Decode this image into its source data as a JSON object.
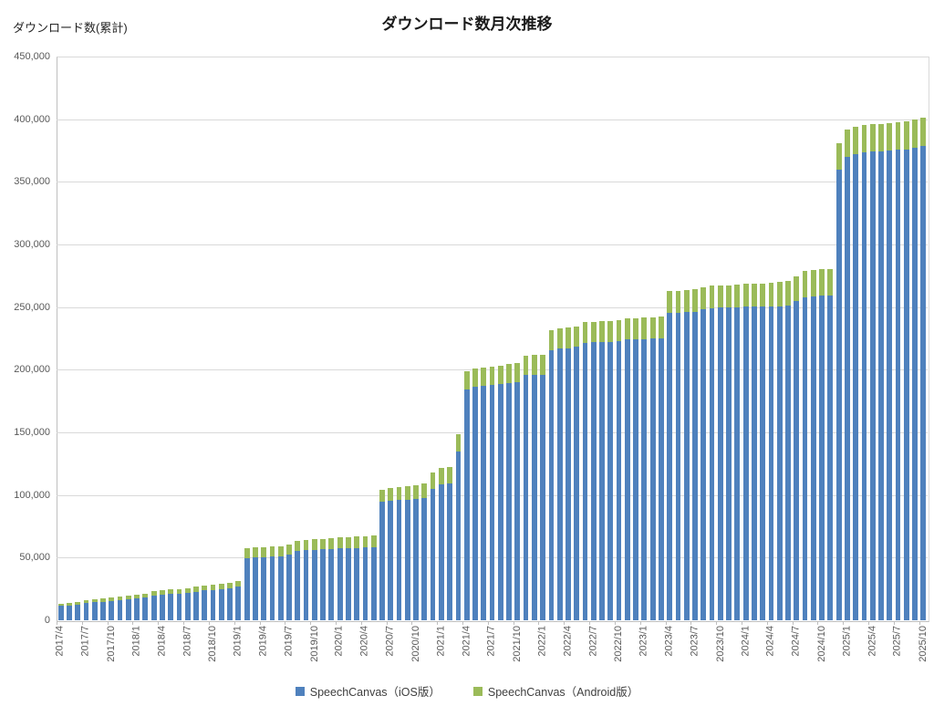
{
  "chart_data": {
    "type": "bar",
    "stacked": true,
    "title": "ダウンロード数月次推移",
    "ylabel": "ダウンロード数(累計)",
    "xlabel": "",
    "ylim": [
      0,
      450000
    ],
    "yticks": [
      0,
      50000,
      100000,
      150000,
      200000,
      250000,
      300000,
      350000,
      400000,
      450000
    ],
    "grid": true,
    "legend_position": "bottom",
    "x_label_every": 3,
    "categories": [
      "2017/4",
      "2017/5",
      "2017/6",
      "2017/7",
      "2017/8",
      "2017/9",
      "2017/10",
      "2017/11",
      "2017/12",
      "2018/1",
      "2018/2",
      "2018/3",
      "2018/4",
      "2018/5",
      "2018/6",
      "2018/7",
      "2018/8",
      "2018/9",
      "2018/10",
      "2018/11",
      "2018/12",
      "2019/1",
      "2019/2",
      "2019/3",
      "2019/4",
      "2019/5",
      "2019/6",
      "2019/7",
      "2019/8",
      "2019/9",
      "2019/10",
      "2019/11",
      "2019/12",
      "2020/1",
      "2020/2",
      "2020/3",
      "2020/4",
      "2020/5",
      "2020/6",
      "2020/7",
      "2020/8",
      "2020/9",
      "2020/10",
      "2020/11",
      "2020/12",
      "2021/1",
      "2021/2",
      "2021/3",
      "2021/4",
      "2021/5",
      "2021/6",
      "2021/7",
      "2021/8",
      "2021/9",
      "2021/10",
      "2021/11",
      "2021/12",
      "2022/1",
      "2022/2",
      "2022/3",
      "2022/4",
      "2022/5",
      "2022/6",
      "2022/7",
      "2022/8",
      "2022/9",
      "2022/10",
      "2022/11",
      "2022/12",
      "2023/1",
      "2023/2",
      "2023/3",
      "2023/4",
      "2023/5",
      "2023/6",
      "2023/7",
      "2023/8",
      "2023/9",
      "2023/10",
      "2023/11",
      "2023/12",
      "2024/1",
      "2024/2",
      "2024/3",
      "2024/4",
      "2024/5",
      "2024/6",
      "2024/7",
      "2024/8",
      "2024/9",
      "2024/10",
      "2024/11",
      "2024/12",
      "2025/1",
      "2025/2",
      "2025/3",
      "2025/4",
      "2025/5",
      "2025/6",
      "2025/7",
      "2025/8",
      "2025/9",
      "2025/10"
    ],
    "series": [
      {
        "name": "SpeechCanvas（iOS版）",
        "color": "#4F81BD",
        "values": [
          11500,
          12000,
          12600,
          13800,
          14300,
          14800,
          15300,
          15800,
          16500,
          17500,
          18200,
          19700,
          20500,
          20800,
          21100,
          21600,
          22800,
          23800,
          24300,
          25000,
          25500,
          26700,
          49700,
          50200,
          50600,
          51000,
          51300,
          52200,
          55100,
          55800,
          56300,
          56600,
          57000,
          57300,
          57500,
          57700,
          58000,
          58300,
          94600,
          95500,
          96000,
          96400,
          96800,
          97700,
          104700,
          108500,
          109000,
          134800,
          184500,
          186600,
          187000,
          188000,
          188500,
          189300,
          189700,
          195700,
          196000,
          196200,
          215900,
          217000,
          217300,
          218100,
          221600,
          221900,
          222100,
          222400,
          223100,
          224000,
          224100,
          224500,
          224900,
          225000,
          245300,
          245400,
          246300,
          246400,
          248100,
          249200,
          249500,
          249600,
          250100,
          250300,
          250400,
          250500,
          250600,
          250700,
          251200,
          254600,
          258000,
          258400,
          258900,
          259200,
          359500,
          370000,
          372000,
          373500,
          374000,
          374200,
          375000,
          375500,
          376000,
          377500,
          378400
        ]
      },
      {
        "name": "SpeechCanvas（Android版）",
        "color": "#9BBB59",
        "values": [
          1900,
          2000,
          2200,
          2500,
          2600,
          2700,
          2800,
          2900,
          3000,
          3100,
          3200,
          3400,
          3600,
          3700,
          3700,
          3800,
          3900,
          4000,
          4100,
          4200,
          4300,
          4900,
          7800,
          7800,
          7900,
          7900,
          8000,
          8100,
          8200,
          8200,
          8300,
          8400,
          8500,
          8700,
          8800,
          9000,
          9200,
          9600,
          9800,
          10000,
          10200,
          10400,
          10700,
          11300,
          13000,
          13000,
          13500,
          14000,
          14000,
          14300,
          14500,
          14700,
          14900,
          15100,
          15300,
          15500,
          15600,
          15800,
          15900,
          16000,
          16100,
          16200,
          16300,
          16400,
          16500,
          16600,
          16700,
          16800,
          16900,
          17000,
          17100,
          17200,
          17300,
          17400,
          17500,
          17600,
          17700,
          17800,
          17900,
          18000,
          18100,
          18200,
          18300,
          18400,
          18800,
          19200,
          19900,
          20100,
          20600,
          21200,
          21400,
          21500,
          21500,
          21600,
          21700,
          21800,
          21900,
          22000,
          22100,
          22200,
          22300,
          22400,
          22800
        ]
      }
    ]
  }
}
